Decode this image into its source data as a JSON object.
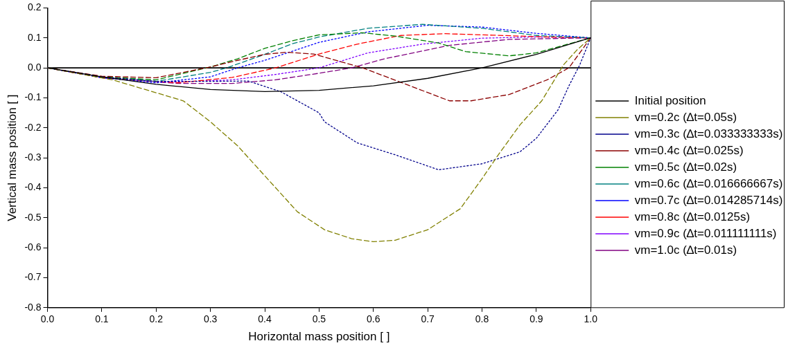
{
  "chart_data": {
    "type": "line",
    "xlabel": "Horizontal mass position [ ]",
    "ylabel": "Vertical mass position [ ]",
    "xlim": [
      0,
      1
    ],
    "xticks": [
      {
        "value": 0,
        "label": "0.0"
      },
      {
        "value": 0.1,
        "label": "0.1"
      },
      {
        "value": 0.2,
        "label": "0.2"
      },
      {
        "value": 0.3,
        "label": "0.3"
      },
      {
        "value": 0.4,
        "label": "0.4"
      },
      {
        "value": 0.5,
        "label": "0.5"
      },
      {
        "value": 0.6,
        "label": "0.6"
      },
      {
        "value": 0.7,
        "label": "0.7"
      },
      {
        "value": 0.8,
        "label": "0.8"
      },
      {
        "value": 0.9,
        "label": "0.9"
      },
      {
        "value": 1,
        "label": "1.0"
      }
    ],
    "ylim": [
      -0.8,
      0.2
    ],
    "yticks": [
      {
        "value": 0.2,
        "label": "0.2"
      },
      {
        "value": 0.1,
        "label": "0.1"
      },
      {
        "value": 0,
        "label": "0.0"
      },
      {
        "value": -0.1,
        "label": "-0.1"
      },
      {
        "value": -0.2,
        "label": "-0.2"
      },
      {
        "value": -0.3,
        "label": "-0.3"
      },
      {
        "value": -0.4,
        "label": "-0.4"
      },
      {
        "value": -0.5,
        "label": "-0.5"
      },
      {
        "value": -0.6,
        "label": "-0.6"
      },
      {
        "value": -0.7,
        "label": "-0.7"
      },
      {
        "value": -0.8,
        "label": "-0.8"
      }
    ],
    "grid": false,
    "legend": "right",
    "ref_lines": [
      {
        "axis": "y",
        "value": 0,
        "color": "#000000"
      }
    ],
    "series": [
      {
        "name": "Initial position",
        "color": "#000000",
        "line_style": "solid",
        "x": [
          0,
          0.1,
          0.2,
          0.3,
          0.4,
          0.5,
          0.6,
          0.7,
          0.8,
          0.9,
          1
        ],
        "values": [
          0,
          -0.03,
          -0.055,
          -0.072,
          -0.079,
          -0.075,
          -0.06,
          -0.035,
          0,
          0.045,
          0.1
        ]
      },
      {
        "name": "vm=0.2c (∆t=0.05s)",
        "color": "#808000",
        "line_style": "dashed",
        "x": [
          0,
          0.12,
          0.25,
          0.3,
          0.35,
          0.4,
          0.46,
          0.51,
          0.56,
          0.6,
          0.64,
          0.7,
          0.76,
          0.8,
          0.83,
          0.87,
          0.91,
          0.95,
          0.975,
          1
        ],
        "values": [
          0,
          -0.04,
          -0.11,
          -0.18,
          -0.26,
          -0.36,
          -0.48,
          -0.54,
          -0.57,
          -0.58,
          -0.575,
          -0.54,
          -0.47,
          -0.37,
          -0.29,
          -0.19,
          -0.11,
          0.01,
          0.06,
          0.1
        ]
      },
      {
        "name": "vm=0.3c (∆t=0.033333333s)",
        "color": "#00008b",
        "line_style": "dotted",
        "x": [
          0,
          0.1,
          0.2,
          0.3,
          0.37,
          0.43,
          0.5,
          0.51,
          0.57,
          0.64,
          0.72,
          0.8,
          0.87,
          0.9,
          0.94,
          0.96,
          0.98,
          1
        ],
        "values": [
          0,
          -0.03,
          -0.045,
          -0.045,
          -0.044,
          -0.08,
          -0.15,
          -0.18,
          -0.25,
          -0.29,
          -0.34,
          -0.32,
          -0.28,
          -0.235,
          -0.14,
          -0.06,
          0.01,
          0.1
        ]
      },
      {
        "name": "vm=0.4c (∆t=0.025s)",
        "color": "#8b0000",
        "line_style": "dashed",
        "x": [
          0,
          0.1,
          0.2,
          0.3,
          0.35,
          0.4,
          0.44,
          0.49,
          0.58,
          0.65,
          0.74,
          0.78,
          0.85,
          0.92,
          0.96,
          1
        ],
        "values": [
          0,
          -0.028,
          -0.033,
          0.003,
          0.025,
          0.045,
          0.052,
          0.046,
          0,
          -0.048,
          -0.11,
          -0.11,
          -0.089,
          -0.04,
          0,
          0.1
        ]
      },
      {
        "name": "vm=0.5c (∆t=0.02s)",
        "color": "#008000",
        "line_style": "dashed",
        "x": [
          0,
          0.1,
          0.2,
          0.3,
          0.35,
          0.4,
          0.45,
          0.5,
          0.58,
          0.64,
          0.72,
          0.77,
          0.85,
          0.9,
          0.95,
          1
        ],
        "values": [
          0,
          -0.03,
          -0.04,
          0.003,
          0.03,
          0.065,
          0.09,
          0.11,
          0.117,
          0.106,
          0.083,
          0.054,
          0.04,
          0.05,
          0.075,
          0.1
        ]
      },
      {
        "name": "vm=0.6c (∆t=0.016666667s)",
        "color": "#008080",
        "line_style": "dashed",
        "x": [
          0,
          0.1,
          0.2,
          0.3,
          0.33,
          0.4,
          0.45,
          0.5,
          0.59,
          0.69,
          0.8,
          0.9,
          1
        ],
        "values": [
          0,
          -0.03,
          -0.045,
          -0.015,
          0,
          0.045,
          0.08,
          0.103,
          0.132,
          0.145,
          0.132,
          0.108,
          0.1
        ]
      },
      {
        "name": "vm=0.7c (∆t=0.014285714s)",
        "color": "#0000ff",
        "line_style": "dotted",
        "x": [
          0,
          0.1,
          0.2,
          0.3,
          0.35,
          0.4,
          0.45,
          0.5,
          0.59,
          0.7,
          0.8,
          0.9,
          1
        ],
        "values": [
          0,
          -0.033,
          -0.05,
          -0.03,
          0,
          0.025,
          0.055,
          0.085,
          0.12,
          0.142,
          0.136,
          0.115,
          0.1
        ]
      },
      {
        "name": "vm=0.8c (∆t=0.0125s)",
        "color": "#ff0000",
        "line_style": "dashed",
        "x": [
          0,
          0.1,
          0.24,
          0.34,
          0.42,
          0.5,
          0.57,
          0.65,
          0.73,
          0.82,
          0.92,
          1
        ],
        "values": [
          0,
          -0.033,
          -0.05,
          -0.032,
          0,
          0.046,
          0.079,
          0.108,
          0.114,
          0.109,
          0.103,
          0.1
        ]
      },
      {
        "name": "vm=0.9c (∆t=0.011111111s)",
        "color": "#8000ff",
        "line_style": "dotted",
        "x": [
          0,
          0.1,
          0.22,
          0.34,
          0.42,
          0.5,
          0.59,
          0.69,
          0.8,
          0.9,
          1
        ],
        "values": [
          0,
          -0.033,
          -0.048,
          -0.04,
          -0.022,
          0,
          0.05,
          0.079,
          0.099,
          0.103,
          0.1
        ]
      },
      {
        "name": "vm=1.0c (∆t=0.01s)",
        "color": "#800080",
        "line_style": "dashed",
        "x": [
          0,
          0.1,
          0.24,
          0.34,
          0.42,
          0.5,
          0.56,
          0.62,
          0.74,
          0.85,
          1
        ],
        "values": [
          0,
          -0.033,
          -0.052,
          -0.052,
          -0.04,
          -0.018,
          0,
          0.03,
          0.075,
          0.095,
          0.1
        ]
      }
    ]
  }
}
